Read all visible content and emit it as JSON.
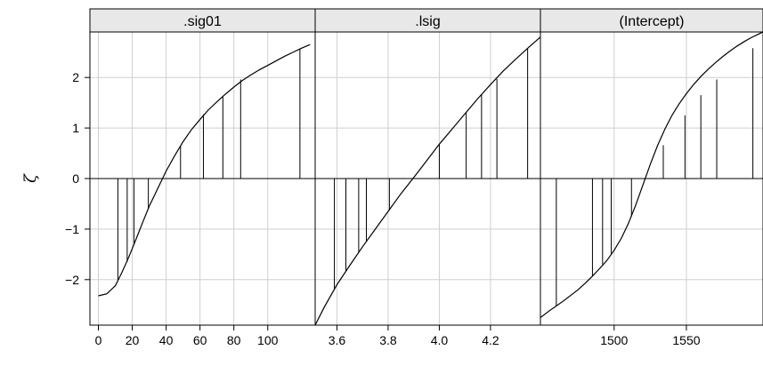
{
  "chart_data": {
    "type": "line",
    "ylabel": "ζ",
    "ylim": [
      -2.9,
      2.9
    ],
    "yticks": [
      -2,
      -1,
      0,
      1,
      2
    ],
    "grid": true,
    "panels": [
      {
        "strip_label": ".sig01",
        "xlim": [
          -5,
          128
        ],
        "xticks": [
          0,
          20,
          40,
          60,
          80,
          100
        ],
        "curve": {
          "x": [
            0,
            5,
            10,
            14,
            18,
            22,
            26,
            30,
            35,
            40,
            45,
            50,
            55,
            60,
            65,
            70,
            75,
            80,
            85,
            90,
            95,
            100,
            105,
            110,
            115,
            120,
            125
          ],
          "y": [
            -2.32,
            -2.28,
            -2.12,
            -1.85,
            -1.55,
            -1.22,
            -0.88,
            -0.55,
            -0.2,
            0.15,
            0.45,
            0.73,
            0.97,
            1.17,
            1.36,
            1.52,
            1.67,
            1.81,
            1.94,
            2.05,
            2.15,
            2.24,
            2.33,
            2.42,
            2.5,
            2.58,
            2.65
          ]
        },
        "drops": [
          {
            "x": 11.5,
            "y": -2.0
          },
          {
            "x": 17.0,
            "y": -1.65
          },
          {
            "x": 21.0,
            "y": -1.3
          },
          {
            "x": 29.5,
            "y": -0.6
          },
          {
            "x": 48.5,
            "y": 0.65
          },
          {
            "x": 62.0,
            "y": 1.27
          },
          {
            "x": 73.5,
            "y": 1.63
          },
          {
            "x": 84.0,
            "y": 1.96
          },
          {
            "x": 119.0,
            "y": 2.57
          }
        ]
      },
      {
        "strip_label": ".lsig",
        "xlim": [
          3.515,
          4.395
        ],
        "xticks": [
          3.6,
          3.8,
          4.0,
          4.2
        ],
        "xtick_labels": [
          "3.6",
          "3.8",
          "4.0",
          "4.2"
        ],
        "curve": {
          "x": [
            3.515,
            3.55,
            3.6,
            3.65,
            3.7,
            3.75,
            3.8,
            3.85,
            3.9,
            3.95,
            4.0,
            4.05,
            4.1,
            4.15,
            4.2,
            4.25,
            4.3,
            4.35,
            4.395
          ],
          "y": [
            -2.9,
            -2.55,
            -2.1,
            -1.72,
            -1.35,
            -1.0,
            -0.65,
            -0.3,
            0.02,
            0.35,
            0.68,
            0.98,
            1.28,
            1.58,
            1.86,
            2.13,
            2.37,
            2.6,
            2.8
          ]
        },
        "drops": [
          {
            "x": 3.59,
            "y": -2.2
          },
          {
            "x": 3.635,
            "y": -1.82
          },
          {
            "x": 3.685,
            "y": -1.45
          },
          {
            "x": 3.715,
            "y": -1.23
          },
          {
            "x": 3.805,
            "y": -0.62
          },
          {
            "x": 4.0,
            "y": 0.68
          },
          {
            "x": 4.105,
            "y": 1.31
          },
          {
            "x": 4.165,
            "y": 1.66
          },
          {
            "x": 4.225,
            "y": 1.97
          },
          {
            "x": 4.345,
            "y": 2.58
          }
        ]
      },
      {
        "strip_label": "(Intercept)",
        "xlim": [
          1449,
          1603
        ],
        "xticks": [
          1500,
          1550
        ],
        "curve": {
          "x": [
            1449,
            1455,
            1460,
            1465,
            1470,
            1475,
            1480,
            1485,
            1490,
            1495,
            1500,
            1505,
            1510,
            1515,
            1520,
            1525,
            1530,
            1535,
            1540,
            1545,
            1550,
            1555,
            1560,
            1565,
            1570,
            1575,
            1580,
            1585,
            1590,
            1595,
            1600,
            1603
          ],
          "y": [
            -2.75,
            -2.62,
            -2.52,
            -2.42,
            -2.31,
            -2.2,
            -2.07,
            -1.93,
            -1.78,
            -1.62,
            -1.42,
            -1.18,
            -0.88,
            -0.52,
            -0.12,
            0.28,
            0.65,
            0.97,
            1.25,
            1.48,
            1.68,
            1.86,
            2.02,
            2.16,
            2.29,
            2.41,
            2.52,
            2.62,
            2.71,
            2.79,
            2.86,
            2.9
          ]
        },
        "drops": [
          {
            "x": 1460,
            "y": -2.52
          },
          {
            "x": 1485,
            "y": -1.93
          },
          {
            "x": 1492,
            "y": -1.7
          },
          {
            "x": 1498,
            "y": -1.5
          },
          {
            "x": 1512,
            "y": -0.75
          },
          {
            "x": 1534,
            "y": 0.66
          },
          {
            "x": 1549,
            "y": 1.25
          },
          {
            "x": 1560,
            "y": 1.65
          },
          {
            "x": 1571,
            "y": 1.96
          },
          {
            "x": 1596,
            "y": 2.58
          }
        ]
      }
    ]
  }
}
